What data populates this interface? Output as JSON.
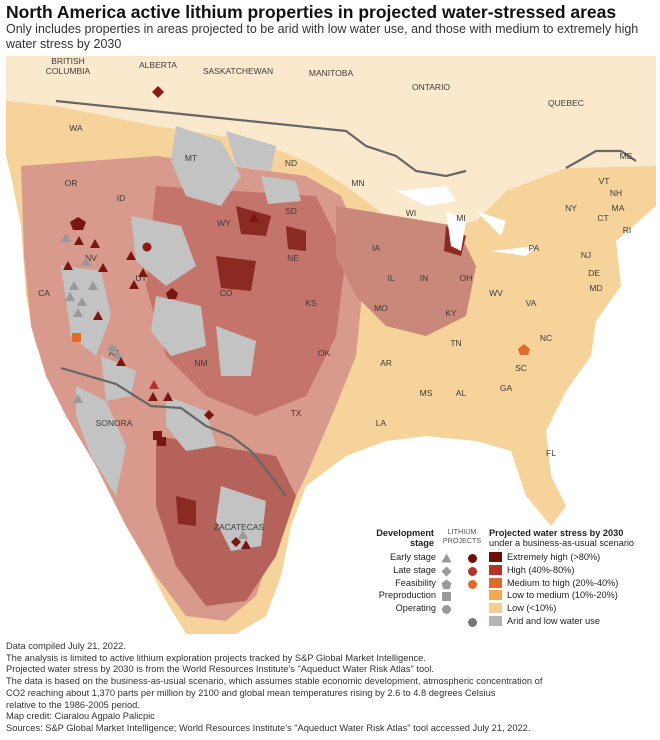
{
  "title": "North America active lithium properties in projected water-stressed areas",
  "subtitle": "Only includes properties in areas projected to be arid with low water use, and those with medium to extremely high water stress by 2030",
  "map_labels": {
    "canada": [
      "BRITISH COLUMBIA",
      "ALBERTA",
      "SASKATCHEWAN",
      "MANITOBA",
      "ONTARIO",
      "QUEBEC"
    ],
    "states": [
      "WA",
      "OR",
      "ID",
      "MT",
      "ND",
      "MN",
      "WY",
      "SD",
      "WI",
      "MI",
      "NV",
      "UT",
      "CO",
      "NE",
      "IA",
      "IL",
      "IN",
      "OH",
      "PA",
      "NY",
      "CA",
      "AZ",
      "NM",
      "KS",
      "MO",
      "KY",
      "WV",
      "VA",
      "OK",
      "AR",
      "TN",
      "NC",
      "SC",
      "TX",
      "LA",
      "MS",
      "AL",
      "GA",
      "FL",
      "ME",
      "VT",
      "NH",
      "MA",
      "CT",
      "RI",
      "NJ",
      "DE",
      "MD"
    ],
    "mexico": [
      "SONORA",
      "ZACATECAS"
    ]
  },
  "legend": {
    "dev_header": "Development stage",
    "lithium_header": "LITHIUM PROJECTS",
    "ws_header": "Projected water stress by 2030",
    "ws_subheader": "under a business-as-usual scenario",
    "stages": [
      {
        "label": "Early stage",
        "shape": "triangle"
      },
      {
        "label": "Late stage",
        "shape": "diamond"
      },
      {
        "label": "Feasibility",
        "shape": "pentagon"
      },
      {
        "label": "Preproduction",
        "shape": "square"
      },
      {
        "label": "Operating",
        "shape": "circle"
      }
    ],
    "water_stress": [
      {
        "label": "Extremely high (>80%)",
        "color": "#6e0e0a"
      },
      {
        "label": "High (40%-80%)",
        "color": "#b4322b"
      },
      {
        "label": "Medium to high (20%-40%)",
        "color": "#e06a2a"
      },
      {
        "label": "Low to medium (10%-20%)",
        "color": "#f2a950"
      },
      {
        "label": "Low (<10%)",
        "color": "#f7cc8e"
      },
      {
        "label": "Arid and low water use",
        "color": "#b5b5b5"
      }
    ]
  },
  "notes": [
    "Data compiled July 21, 2022.",
    "The analysis is limited to active lithium exploration projects tracked by S&P Global Market Intelligence.",
    "Projected water stress by 2030 is from the World Resources Institute's \"Aqueduct Water Risk Atlas\" tool.",
    "The data is based on the business-as-usual scenario, which assumes stable economic development, atmospheric concentration of",
    "CO2 reaching about 1,370 parts per million by 2100 and global mean temperatures rising by 2.6 to 4.8 degrees Celsius",
    "relative to the 1986-2005 period.",
    "Map credit: Ciaralou Agpalo Palicpic",
    "Sources: S&P Global Market Intelligence; World Resources Institute's \"Aqueduct Water Risk Atlas\" tool accessed July 21, 2022."
  ]
}
